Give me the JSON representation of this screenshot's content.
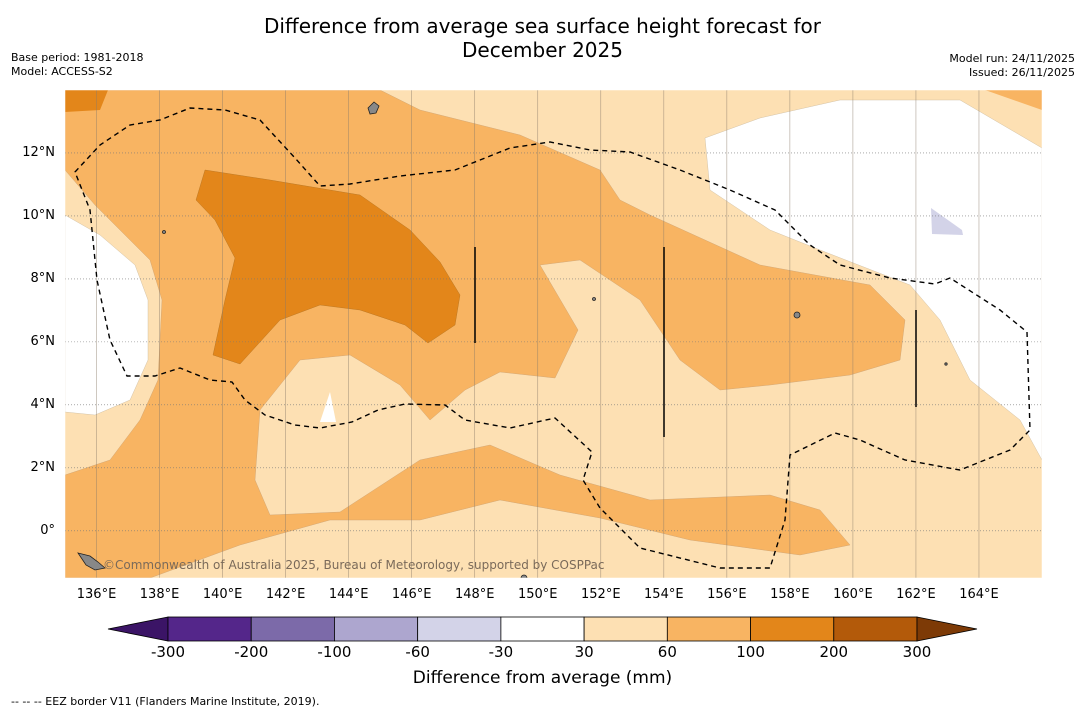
{
  "title_line1": "Difference from average sea surface height forecast for",
  "title_line2": "December 2025",
  "meta_left": {
    "base_period": "Base period: 1981-2018",
    "model": "Model: ACCESS-S2"
  },
  "meta_right": {
    "model_run": "Model run: 24/11/2025",
    "issued": "Issued: 26/11/2025"
  },
  "map": {
    "lon_range": [
      135,
      166
    ],
    "lat_range": [
      -1.5,
      14
    ],
    "lat_labels": [
      "12°N",
      "10°N",
      "8°N",
      "6°N",
      "4°N",
      "2°N",
      "0°"
    ],
    "lon_labels": [
      "136°E",
      "138°E",
      "140°E",
      "142°E",
      "144°E",
      "146°E",
      "148°E",
      "150°E",
      "152°E",
      "154°E",
      "156°E",
      "158°E",
      "160°E",
      "162°E",
      "164°E"
    ],
    "credit": "©Commonwealth of Australia 2025, Bureau of Meteorology, supported by COSPPac",
    "feature_names": [
      "eez-border",
      "land-islands",
      "contour-fill"
    ]
  },
  "colorbar": {
    "title": "Difference from average (mm)",
    "labels": [
      "-300",
      "-200",
      "-100",
      "-60",
      "-30",
      "30",
      "60",
      "100",
      "200",
      "300"
    ],
    "colors": [
      "#3b1466",
      "#54268a",
      "#7c6aa9",
      "#ada6cf",
      "#d3d3e8",
      "#ffffff",
      "#fde0b3",
      "#f8b462",
      "#e3861a",
      "#b35a0a",
      "#7d3a06"
    ]
  },
  "footnote": "--  --  -- EEZ border V11 (Flanders Marine Institute, 2019)."
}
